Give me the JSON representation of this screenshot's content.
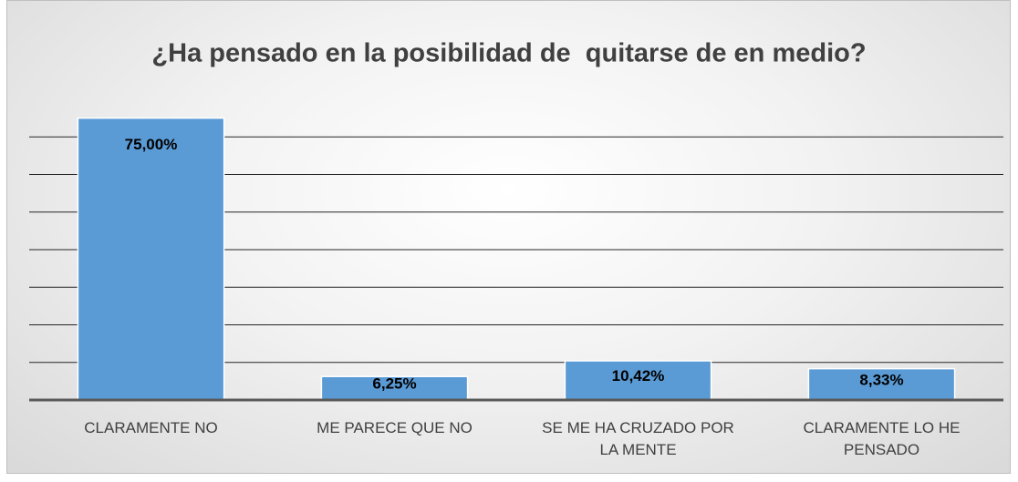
{
  "chart_data": {
    "type": "bar",
    "title": "¿Ha pensado en la posibilidad de  quitarse de en medio?",
    "categories": [
      "CLARAMENTE NO",
      "ME PARECE QUE NO",
      "SE ME HA CRUZADO POR LA MENTE",
      "CLARAMENTE LO HE PENSADO"
    ],
    "values": [
      75,
      6.25,
      10.42,
      8.33
    ],
    "value_labels": [
      "75,00%",
      "6,25%",
      "10,42%",
      "8,33%"
    ],
    "color": "#5b9bd5",
    "ylim": [
      0,
      80
    ],
    "yticks": [
      0,
      10,
      20,
      30,
      40,
      50,
      60,
      70,
      80
    ],
    "grid": true
  }
}
